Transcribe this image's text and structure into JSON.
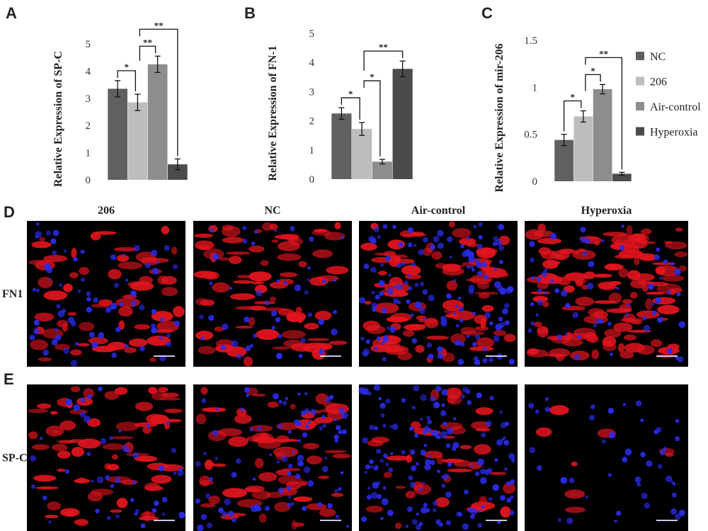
{
  "chart_data": [
    {
      "type": "bar",
      "panel": "A",
      "ylabel": "Relative Expression of SP-C",
      "values": [
        3.35,
        2.85,
        4.25,
        0.57
      ],
      "errors": [
        0.3,
        0.3,
        0.3,
        0.2
      ],
      "ylim": [
        0,
        5
      ],
      "yticks": [
        0,
        1,
        2,
        3,
        4,
        5
      ],
      "comparisons": [
        {
          "bars": [
            0,
            1
          ],
          "label": "*"
        },
        {
          "bars": [
            1,
            2
          ],
          "label": "**"
        },
        {
          "bars": [
            1,
            3
          ],
          "label": "**"
        }
      ]
    },
    {
      "type": "bar",
      "panel": "B",
      "ylabel": "Relative Expression of FN-1",
      "values": [
        2.25,
        1.72,
        0.6,
        3.78
      ],
      "errors": [
        0.2,
        0.22,
        0.08,
        0.27
      ],
      "ylim": [
        0,
        5
      ],
      "yticks": [
        0,
        1,
        2,
        3,
        4,
        5
      ],
      "comparisons": [
        {
          "bars": [
            0,
            1
          ],
          "label": "*"
        },
        {
          "bars": [
            1,
            2
          ],
          "label": "*"
        },
        {
          "bars": [
            1,
            3
          ],
          "label": "**"
        }
      ]
    },
    {
      "type": "bar",
      "panel": "C",
      "ylabel": "Relative Expression of mir-206",
      "values": [
        0.44,
        0.69,
        0.98,
        0.08
      ],
      "errors": [
        0.06,
        0.06,
        0.05,
        0.015
      ],
      "ylim": [
        0,
        1.5
      ],
      "yticks": [
        0,
        0.5,
        1,
        1.5
      ],
      "comparisons": [
        {
          "bars": [
            0,
            1
          ],
          "label": "*"
        },
        {
          "bars": [
            1,
            2
          ],
          "label": "*"
        },
        {
          "bars": [
            1,
            3
          ],
          "label": "**"
        }
      ],
      "legend": [
        {
          "name": "NC",
          "color": "#606060"
        },
        {
          "name": "206",
          "color": "#bdbdbd"
        },
        {
          "name": "Air-control",
          "color": "#8d8d8d"
        },
        {
          "name": "Hyperoxia",
          "color": "#4b4b4b"
        }
      ]
    }
  ],
  "figure": {
    "panel_d": "D",
    "panel_e": "E",
    "columns": [
      "206",
      "NC",
      "Air-control",
      "Hyperoxia"
    ],
    "rows": [
      "FN1",
      "SP-C"
    ]
  }
}
